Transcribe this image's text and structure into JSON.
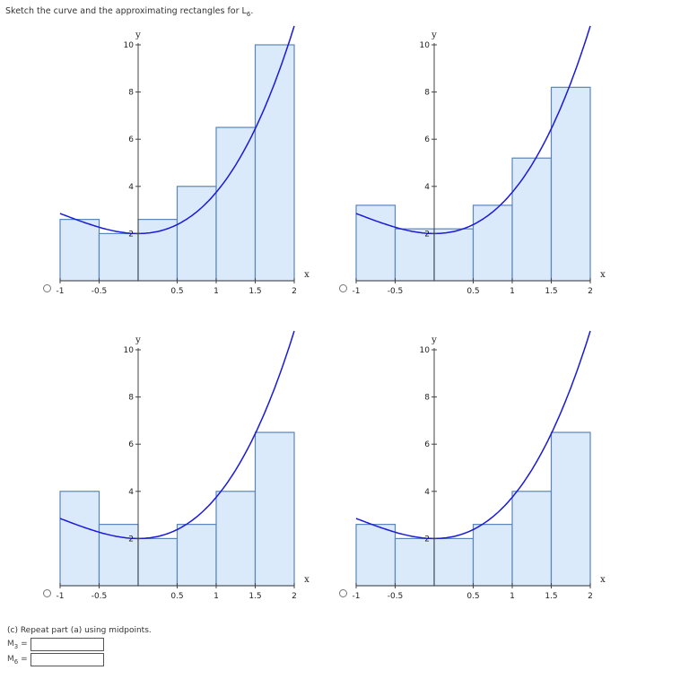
{
  "prompt": {
    "text": "Sketch the curve and the approximating rectangles for L",
    "sub": "6",
    "end": "."
  },
  "chart_data": [
    {
      "type": "bar",
      "function_curve": "x^2 + x + 2 style curve (blue) over [-1, 2]",
      "xlabel": "x",
      "ylabel": "y",
      "xlim": [
        -1,
        2
      ],
      "ylim": [
        0,
        10
      ],
      "x_ticks": [
        "-1",
        "-0.5",
        "0.5",
        "1",
        "1.5",
        "2"
      ],
      "y_ticks": [
        "2",
        "4",
        "6",
        "8",
        "10"
      ],
      "bars": [
        {
          "x0": -1,
          "x1": -0.5,
          "height": 2.6
        },
        {
          "x0": -0.5,
          "x1": 0,
          "height": 2.0
        },
        {
          "x0": 0,
          "x1": 0.5,
          "height": 2.6
        },
        {
          "x0": 0.5,
          "x1": 1,
          "height": 4.0
        },
        {
          "x0": 1,
          "x1": 1.5,
          "height": 6.5
        },
        {
          "x0": 1.5,
          "x1": 2,
          "height": 10.0
        }
      ],
      "curve_color": "#1a1adb",
      "bar_fill": "#dbeafb",
      "bar_stroke": "#5a85b8"
    },
    {
      "type": "bar",
      "xlabel": "x",
      "ylabel": "y",
      "xlim": [
        -1,
        2
      ],
      "ylim": [
        0,
        10
      ],
      "x_ticks": [
        "-1",
        "-0.5",
        "0.5",
        "1",
        "1.5",
        "2"
      ],
      "y_ticks": [
        "2",
        "4",
        "6",
        "8",
        "10"
      ],
      "bars": [
        {
          "x0": -1,
          "x1": -0.5,
          "height": 3.2
        },
        {
          "x0": -0.5,
          "x1": 0,
          "height": 2.2
        },
        {
          "x0": 0,
          "x1": 0.5,
          "height": 2.2
        },
        {
          "x0": 0.5,
          "x1": 1,
          "height": 3.2
        },
        {
          "x0": 1,
          "x1": 1.5,
          "height": 5.2
        },
        {
          "x0": 1.5,
          "x1": 2,
          "height": 8.2
        }
      ],
      "curve_color": "#1a1adb",
      "bar_fill": "#dbeafb",
      "bar_stroke": "#5a85b8"
    },
    {
      "type": "bar",
      "xlabel": "x",
      "ylabel": "y",
      "xlim": [
        -1,
        2
      ],
      "ylim": [
        0,
        10
      ],
      "x_ticks": [
        "-1",
        "-0.5",
        "0.5",
        "1",
        "1.5",
        "2"
      ],
      "y_ticks": [
        "2",
        "4",
        "6",
        "8",
        "10"
      ],
      "bars": [
        {
          "x0": -1,
          "x1": -0.5,
          "height": 4.0
        },
        {
          "x0": -0.5,
          "x1": 0,
          "height": 2.6
        },
        {
          "x0": 0,
          "x1": 0.5,
          "height": 2.0
        },
        {
          "x0": 0.5,
          "x1": 1,
          "height": 2.6
        },
        {
          "x0": 1,
          "x1": 1.5,
          "height": 4.0
        },
        {
          "x0": 1.5,
          "x1": 2,
          "height": 6.5
        }
      ],
      "curve_color": "#1a1adb",
      "bar_fill": "#dbeafb",
      "bar_stroke": "#5a85b8"
    },
    {
      "type": "bar",
      "xlabel": "x",
      "ylabel": "y",
      "xlim": [
        -1,
        2
      ],
      "ylim": [
        0,
        10
      ],
      "x_ticks": [
        "-1",
        "-0.5",
        "0.5",
        "1",
        "1.5",
        "2"
      ],
      "y_ticks": [
        "2",
        "4",
        "6",
        "8",
        "10"
      ],
      "bars": [
        {
          "x0": -1,
          "x1": -0.5,
          "height": 2.6
        },
        {
          "x0": -0.5,
          "x1": 0,
          "height": 2.0
        },
        {
          "x0": 0,
          "x1": 0.5,
          "height": 2.0
        },
        {
          "x0": 0.5,
          "x1": 1,
          "height": 2.6
        },
        {
          "x0": 1,
          "x1": 1.5,
          "height": 4.0
        },
        {
          "x0": 1.5,
          "x1": 2,
          "height": 6.5
        }
      ],
      "curve_color": "#1a1adb",
      "bar_fill": "#dbeafb",
      "bar_stroke": "#5a85b8"
    }
  ],
  "part_c": {
    "text": "(c) Repeat part (a) using midpoints."
  },
  "fields": [
    {
      "label": "M",
      "sub": "3",
      "eq": " =",
      "value": ""
    },
    {
      "label": "M",
      "sub": "6",
      "eq": " =",
      "value": ""
    }
  ]
}
